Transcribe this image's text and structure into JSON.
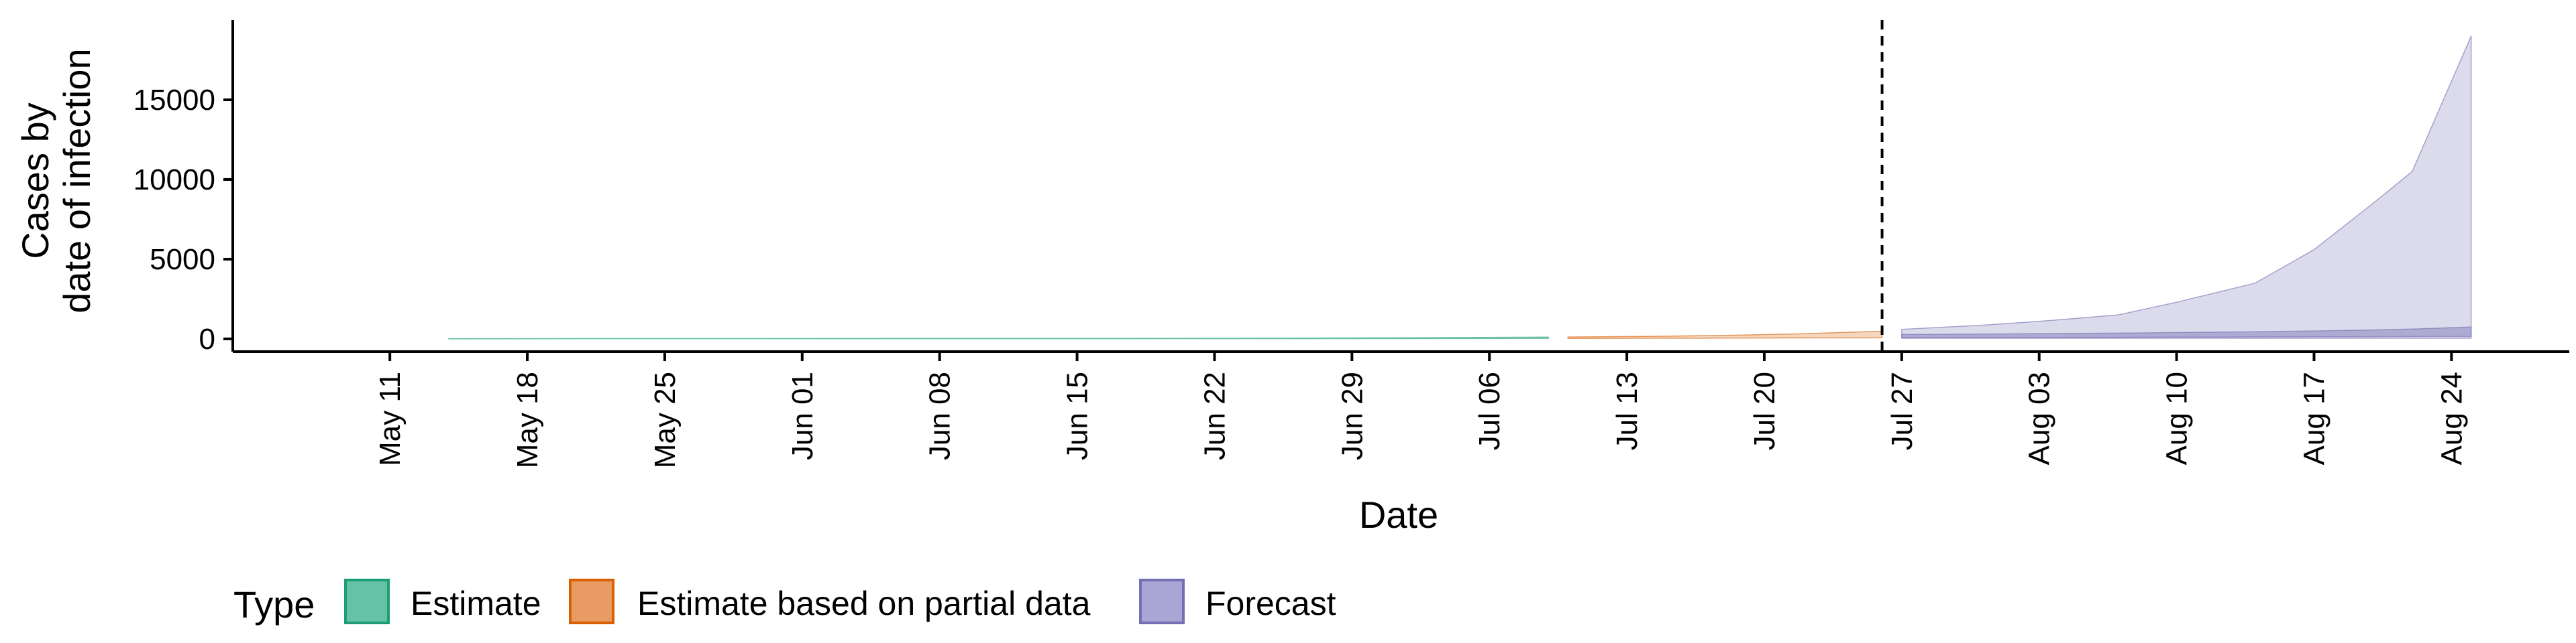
{
  "chart_data": {
    "type": "area",
    "xlabel": "Date",
    "ylabel_lines": [
      "Cases by",
      "date of infection"
    ],
    "x_tick_labels": [
      "May 11",
      "May 18",
      "May 25",
      "Jun 01",
      "Jun 08",
      "Jun 15",
      "Jun 22",
      "Jun 29",
      "Jul 06",
      "Jul 13",
      "Jul 20",
      "Jul 27",
      "Aug 03",
      "Aug 10",
      "Aug 17",
      "Aug 24"
    ],
    "x_tick_dates": [
      "2020-05-11",
      "2020-05-18",
      "2020-05-25",
      "2020-06-01",
      "2020-06-08",
      "2020-06-15",
      "2020-06-22",
      "2020-06-29",
      "2020-07-06",
      "2020-07-13",
      "2020-07-20",
      "2020-07-27",
      "2020-08-03",
      "2020-08-10",
      "2020-08-17",
      "2020-08-24"
    ],
    "y_ticks": [
      0,
      5000,
      10000,
      15000
    ],
    "y_tick_labels": [
      "0",
      "5000",
      "10000",
      "15000"
    ],
    "xlim": [
      "2020-05-03",
      "2020-08-30"
    ],
    "ylim": [
      -800,
      20000
    ],
    "vline_date": "2020-07-26",
    "vline_style": "dashed",
    "grid": false,
    "legend": {
      "title": "Type",
      "position": "bottom",
      "entries": [
        {
          "label": "Estimate",
          "fill": "#66c2a5",
          "stroke": "#1b9e77"
        },
        {
          "label": "Estimate based on partial data",
          "fill": "#e89b63",
          "stroke": "#d95f02"
        },
        {
          "label": "Forecast",
          "fill": "#a9a5d4",
          "stroke": "#7570b3"
        }
      ]
    },
    "series": [
      {
        "name": "Estimate",
        "color": "#1b9e77",
        "x": [
          "2020-05-14",
          "2020-05-21",
          "2020-05-28",
          "2020-06-04",
          "2020-06-11",
          "2020-06-18",
          "2020-06-25",
          "2020-07-02",
          "2020-07-09"
        ],
        "lower": [
          0,
          5,
          5,
          10,
          10,
          10,
          15,
          20,
          30
        ],
        "upper": [
          10,
          25,
          25,
          30,
          35,
          35,
          45,
          70,
          110
        ]
      },
      {
        "name": "Estimate based on partial data",
        "color": "#d95f02",
        "x": [
          "2020-07-10",
          "2020-07-14",
          "2020-07-18",
          "2020-07-22",
          "2020-07-26"
        ],
        "lower": [
          30,
          40,
          50,
          60,
          70
        ],
        "upper": [
          120,
          160,
          220,
          320,
          480
        ]
      },
      {
        "name": "Forecast",
        "color": "#7570b3",
        "x": [
          "2020-07-27",
          "2020-07-31",
          "2020-08-03",
          "2020-08-07",
          "2020-08-10",
          "2020-08-14",
          "2020-08-17",
          "2020-08-20",
          "2020-08-22",
          "2020-08-25"
        ],
        "lower": [
          40,
          40,
          40,
          40,
          40,
          40,
          40,
          40,
          40,
          40
        ],
        "upper": [
          600,
          850,
          1100,
          1500,
          2300,
          3500,
          5600,
          8500,
          10500,
          19000
        ],
        "inner_lower": [
          70,
          80,
          90,
          100,
          110,
          120,
          130,
          140,
          150,
          160
        ],
        "inner_upper": [
          280,
          300,
          330,
          360,
          400,
          450,
          500,
          560,
          620,
          750
        ]
      }
    ]
  }
}
